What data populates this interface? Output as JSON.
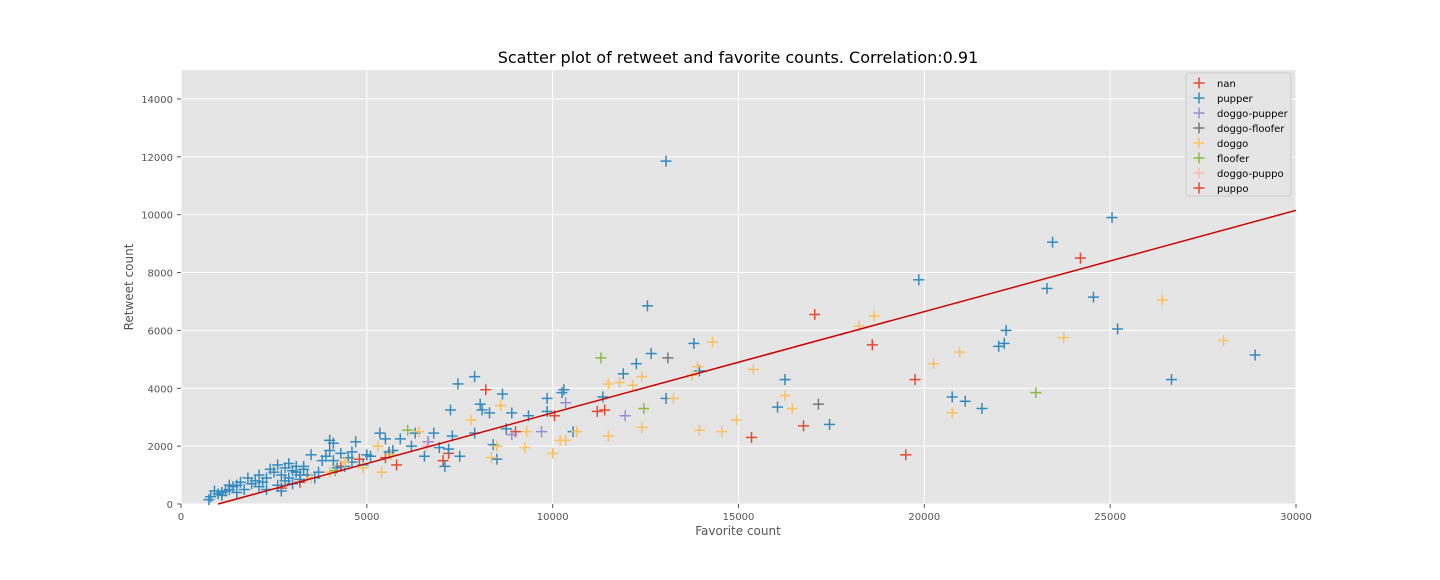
{
  "chart_data": {
    "type": "scatter",
    "title": "Scatter plot of retweet and favorite counts. Correlation:0.91",
    "xlabel": "Favorite count",
    "ylabel": "Retweet count",
    "xlim": [
      0,
      30000
    ],
    "ylim": [
      0,
      15000
    ],
    "xticks": [
      0,
      5000,
      10000,
      15000,
      20000,
      25000,
      30000
    ],
    "yticks": [
      0,
      2000,
      4000,
      6000,
      8000,
      10000,
      12000,
      14000
    ],
    "grid": true,
    "legend_position": "top-right",
    "marker": "+",
    "series": [
      {
        "name": "nan",
        "color": "#E24A33",
        "points": [
          [
            8200,
            3950
          ],
          [
            5800,
            1350
          ],
          [
            7050,
            1500
          ],
          [
            7200,
            1750
          ],
          [
            4300,
            1300
          ],
          [
            3200,
            750
          ],
          [
            2700,
            550
          ],
          [
            10050,
            3050
          ],
          [
            11400,
            3250
          ],
          [
            11200,
            3200
          ],
          [
            15350,
            2300
          ],
          [
            16750,
            2700
          ],
          [
            17050,
            6550
          ],
          [
            18600,
            5500
          ],
          [
            19500,
            1700
          ],
          [
            19750,
            4300
          ],
          [
            24200,
            8500
          ],
          [
            5500,
            1600
          ],
          [
            4800,
            1550
          ],
          [
            9000,
            2500
          ]
        ]
      },
      {
        "name": "pupper",
        "color": "#348ABD",
        "points": [
          [
            13050,
            11850
          ],
          [
            25050,
            9900
          ],
          [
            23450,
            9050
          ],
          [
            19850,
            7750
          ],
          [
            23300,
            7450
          ],
          [
            24550,
            7150
          ],
          [
            12550,
            6850
          ],
          [
            25200,
            6050
          ],
          [
            22200,
            6000
          ],
          [
            22000,
            5450
          ],
          [
            22150,
            5550
          ],
          [
            13800,
            5550
          ],
          [
            12650,
            5200
          ],
          [
            28900,
            5150
          ],
          [
            12250,
            4850
          ],
          [
            11900,
            4500
          ],
          [
            13950,
            4600
          ],
          [
            26650,
            4300
          ],
          [
            16250,
            4300
          ],
          [
            7450,
            4150
          ],
          [
            7900,
            4400
          ],
          [
            10300,
            3950
          ],
          [
            10250,
            3850
          ],
          [
            8650,
            3800
          ],
          [
            9850,
            3650
          ],
          [
            13050,
            3650
          ],
          [
            11350,
            3700
          ],
          [
            20750,
            3700
          ],
          [
            21100,
            3550
          ],
          [
            8050,
            3450
          ],
          [
            21550,
            3300
          ],
          [
            16050,
            3350
          ],
          [
            7250,
            3250
          ],
          [
            8100,
            3250
          ],
          [
            8300,
            3150
          ],
          [
            8900,
            3150
          ],
          [
            9850,
            3200
          ],
          [
            9350,
            3050
          ],
          [
            17450,
            2750
          ],
          [
            8750,
            2600
          ],
          [
            10550,
            2500
          ],
          [
            6800,
            2450
          ],
          [
            6300,
            2450
          ],
          [
            7300,
            2350
          ],
          [
            7900,
            2450
          ],
          [
            5350,
            2450
          ],
          [
            5500,
            2250
          ],
          [
            5900,
            2250
          ],
          [
            4700,
            2150
          ],
          [
            4100,
            2100
          ],
          [
            4000,
            2200
          ],
          [
            6650,
            2150
          ],
          [
            8400,
            2050
          ],
          [
            6950,
            1950
          ],
          [
            7200,
            1900
          ],
          [
            6550,
            1650
          ],
          [
            7500,
            1650
          ],
          [
            8500,
            1550
          ],
          [
            7100,
            1300
          ],
          [
            4900,
            1350
          ],
          [
            3900,
            1650
          ],
          [
            4100,
            1500
          ],
          [
            3500,
            1700
          ],
          [
            3800,
            1500
          ],
          [
            4300,
            1750
          ],
          [
            4500,
            1600
          ],
          [
            5700,
            1850
          ],
          [
            5100,
            1650
          ],
          [
            5000,
            1700
          ],
          [
            4600,
            1450
          ],
          [
            4400,
            1300
          ],
          [
            4200,
            1250
          ],
          [
            3600,
            900
          ],
          [
            3700,
            1100
          ],
          [
            3300,
            1200
          ],
          [
            3100,
            1300
          ],
          [
            2900,
            1400
          ],
          [
            2800,
            1250
          ],
          [
            3000,
            1150
          ],
          [
            3200,
            1000
          ],
          [
            2900,
            900
          ],
          [
            2700,
            1000
          ],
          [
            2500,
            1100
          ],
          [
            2400,
            1200
          ],
          [
            2300,
            900
          ],
          [
            2100,
            1000
          ],
          [
            2000,
            800
          ],
          [
            1900,
            700
          ],
          [
            1800,
            900
          ],
          [
            1600,
            750
          ],
          [
            1500,
            650
          ],
          [
            1400,
            600
          ],
          [
            1300,
            500
          ],
          [
            1200,
            450
          ],
          [
            1100,
            400
          ],
          [
            1000,
            350
          ],
          [
            900,
            450
          ],
          [
            800,
            250
          ],
          [
            750,
            150
          ],
          [
            1100,
            300
          ],
          [
            1300,
            650
          ],
          [
            1700,
            500
          ],
          [
            2100,
            600
          ],
          [
            2300,
            500
          ],
          [
            2600,
            650
          ],
          [
            2800,
            800
          ],
          [
            3000,
            700
          ],
          [
            3200,
            850
          ],
          [
            3400,
            1000
          ],
          [
            2200,
            750
          ],
          [
            1500,
            400
          ],
          [
            2700,
            450
          ],
          [
            3300,
            1300
          ],
          [
            3100,
            1100
          ],
          [
            2600,
            1350
          ],
          [
            4000,
            1850
          ],
          [
            4600,
            1800
          ],
          [
            5600,
            1800
          ],
          [
            6200,
            2000
          ]
        ]
      },
      {
        "name": "doggo-pupper",
        "color": "#988ED5",
        "points": [
          [
            10350,
            3500
          ],
          [
            11950,
            3050
          ],
          [
            9700,
            2500
          ],
          [
            8900,
            2400
          ],
          [
            6650,
            2150
          ]
        ]
      },
      {
        "name": "doggo-floofer",
        "color": "#777777",
        "points": [
          [
            13100,
            5050
          ],
          [
            17150,
            3450
          ]
        ]
      },
      {
        "name": "doggo",
        "color": "#FBC15E",
        "points": [
          [
            26400,
            7050
          ],
          [
            18650,
            6500
          ],
          [
            18250,
            6150
          ],
          [
            28050,
            5650
          ],
          [
            23750,
            5750
          ],
          [
            14300,
            5600
          ],
          [
            20950,
            5250
          ],
          [
            20250,
            4850
          ],
          [
            13900,
            4750
          ],
          [
            13750,
            4450
          ],
          [
            15400,
            4650
          ],
          [
            12400,
            4400
          ],
          [
            11800,
            4200
          ],
          [
            11500,
            4150
          ],
          [
            12150,
            4100
          ],
          [
            13250,
            3650
          ],
          [
            16250,
            3750
          ],
          [
            20750,
            3150
          ],
          [
            16450,
            3300
          ],
          [
            14950,
            2900
          ],
          [
            8600,
            3400
          ],
          [
            7800,
            2900
          ],
          [
            12400,
            2650
          ],
          [
            13950,
            2550
          ],
          [
            14550,
            2500
          ],
          [
            11500,
            2350
          ],
          [
            10200,
            2200
          ],
          [
            10650,
            2500
          ],
          [
            9300,
            2500
          ],
          [
            10350,
            2200
          ],
          [
            9250,
            1950
          ],
          [
            10000,
            1750
          ],
          [
            8500,
            2000
          ],
          [
            8350,
            1600
          ],
          [
            6400,
            2500
          ],
          [
            5650,
            1700
          ],
          [
            5400,
            1100
          ],
          [
            4900,
            1250
          ],
          [
            4400,
            1450
          ],
          [
            3500,
            900
          ],
          [
            4000,
            1100
          ],
          [
            5300,
            2000
          ]
        ]
      },
      {
        "name": "floofer",
        "color": "#8EBA42",
        "points": [
          [
            11300,
            5050
          ],
          [
            23000,
            3850
          ],
          [
            12450,
            3300
          ],
          [
            6100,
            2550
          ],
          [
            4150,
            1150
          ]
        ]
      },
      {
        "name": "doggo-puppo",
        "color": "#FFB5B8",
        "points": [
          [
            6600,
            2000
          ]
        ]
      },
      {
        "name": "puppo",
        "color": "#E24A33",
        "points": []
      }
    ],
    "regression_line": {
      "color": "#CC0000",
      "points": [
        [
          1000,
          0
        ],
        [
          30000,
          10150
        ]
      ]
    }
  }
}
